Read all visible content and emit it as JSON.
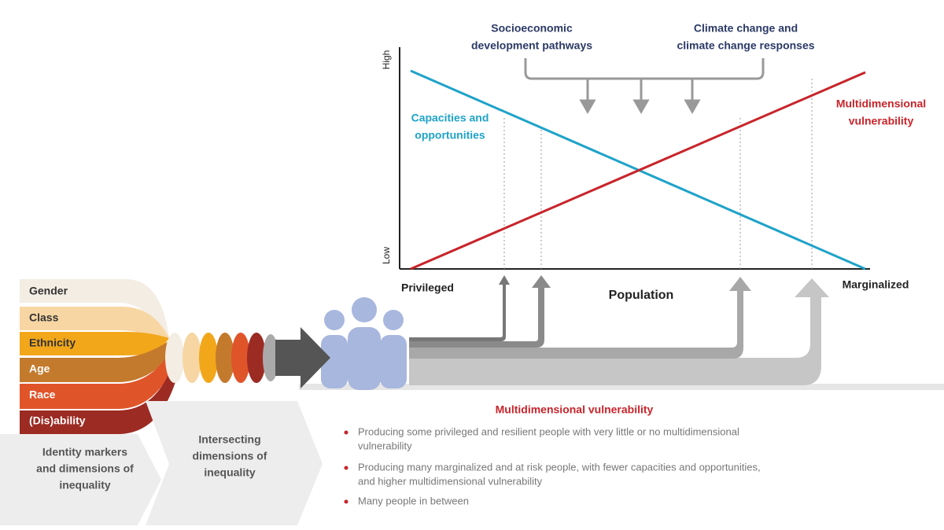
{
  "header": {
    "pathways": [
      "Socioeconomic",
      "development pathways"
    ],
    "climate": [
      "Climate change and",
      "climate change responses"
    ]
  },
  "chart": {
    "y_high": "High",
    "y_low": "Low",
    "capacities": [
      "Capacities and",
      "opportunities"
    ],
    "vulnerability": [
      "Multidimensional",
      "vulnerability"
    ],
    "x_left": "Privileged",
    "x_title": "Population",
    "x_right": "Marginalized"
  },
  "identity_markers": [
    "Gender",
    "Class",
    "Ethnicity",
    "Age",
    "Race",
    "(Dis)ability"
  ],
  "steps": [
    [
      "Identity markers",
      "and dimensions of",
      "inequality"
    ],
    [
      "Intersecting",
      "dimensions of",
      "inequality"
    ]
  ],
  "outcome": {
    "title": "Multidimensional vulnerability",
    "bullets": [
      [
        "Producing some privileged and resilient people with very little or no multidimensional",
        "vulnerability"
      ],
      [
        "Producing many marginalized and at risk people, with fewer capacities and opportunities,",
        "and higher multidimensional vulnerability"
      ],
      [
        "Many people in between"
      ]
    ]
  }
}
